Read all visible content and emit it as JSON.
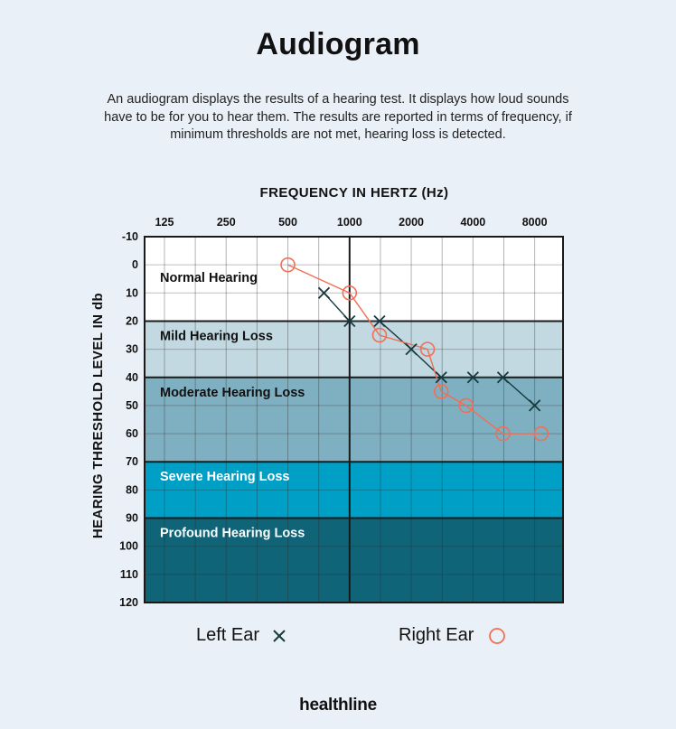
{
  "title": "Audiogram",
  "description": "An audiogram displays the results of a hearing test. It displays how loud sounds have to be for you to hear them. The results are reported in terms of frequency, if minimum thresholds are not met, hearing loss is detected.",
  "brand": "healthline",
  "chart_data": {
    "type": "line",
    "xlabel": "FREQUENCY IN HERTZ (Hz)",
    "ylabel": "HEARING THRESHOLD LEVEL IN db",
    "x_scale": "log2",
    "x_ticks": [
      125,
      250,
      500,
      1000,
      2000,
      4000,
      8000
    ],
    "x_tick_labels": [
      "125",
      "250",
      "500",
      "1000",
      "2000",
      "4000",
      "8000"
    ],
    "xlim": [
      100,
      11000
    ],
    "y_ticks": [
      -10,
      0,
      10,
      20,
      30,
      40,
      50,
      60,
      70,
      80,
      90,
      100,
      110,
      120
    ],
    "y_tick_labels": [
      "-10",
      "0",
      "10",
      "20",
      "30",
      "40",
      "50",
      "60",
      "70",
      "80",
      "90",
      "100",
      "110",
      "120"
    ],
    "ylim": [
      -10,
      120
    ],
    "y_inverted": true,
    "grid": true,
    "zones": [
      {
        "label": "Normal Hearing",
        "from": -10,
        "to": 20,
        "color": "#ffffff"
      },
      {
        "label": "Mild Hearing Loss",
        "from": 20,
        "to": 40,
        "color": "#c2d9e1"
      },
      {
        "label": "Moderate Hearing Loss",
        "from": 40,
        "to": 70,
        "color": "#7fb0c1"
      },
      {
        "label": "Severe Hearing Loss",
        "from": 70,
        "to": 90,
        "color": "#00a0c6"
      },
      {
        "label": "Profound Hearing Loss",
        "from": 90,
        "to": 120,
        "color": "#0f6478"
      }
    ],
    "series": [
      {
        "name": "Left Ear",
        "marker": "x",
        "color": "#163a3f",
        "points": [
          [
            750,
            10
          ],
          [
            1000,
            20
          ],
          [
            1400,
            20
          ],
          [
            2000,
            30
          ],
          [
            2800,
            40
          ],
          [
            4000,
            40
          ],
          [
            5600,
            40
          ],
          [
            8000,
            50
          ]
        ]
      },
      {
        "name": "Right Ear",
        "marker": "circle",
        "color": "#f26e55",
        "points": [
          [
            500,
            0
          ],
          [
            1000,
            10
          ],
          [
            1400,
            25
          ],
          [
            2400,
            30
          ],
          [
            2800,
            45
          ],
          [
            3700,
            50
          ],
          [
            5600,
            60
          ],
          [
            8600,
            60
          ]
        ]
      }
    ],
    "legend_position": "bottom"
  }
}
